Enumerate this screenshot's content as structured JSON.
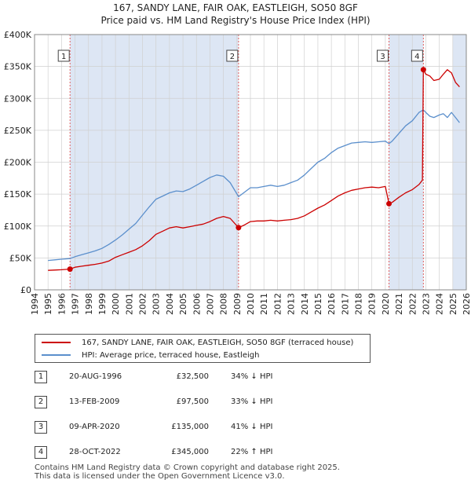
{
  "title": "167, SANDY LANE, FAIR OAK, EASTLEIGH, SO50 8GF",
  "subtitle": "Price paid vs. HM Land Registry's House Price Index (HPI)",
  "colors": {
    "price_line": "#cc0000",
    "hpi_line": "#5b8fcc",
    "shade": "#dde6f4",
    "vline": "#e06060",
    "grid": "#d0d0d0"
  },
  "chart_data": {
    "type": "line",
    "xlim": [
      1994,
      2026
    ],
    "ylim": [
      0,
      400000
    ],
    "x_ticks": [
      "1994",
      "1995",
      "1996",
      "1997",
      "1998",
      "1999",
      "2000",
      "2001",
      "2002",
      "2003",
      "2004",
      "2005",
      "2006",
      "2007",
      "2008",
      "2009",
      "2010",
      "2011",
      "2012",
      "2013",
      "2014",
      "2015",
      "2016",
      "2017",
      "2018",
      "2019",
      "2020",
      "2021",
      "2022",
      "2023",
      "2024",
      "2025",
      "2026"
    ],
    "y_ticks": [
      {
        "value": 0,
        "label": "£0"
      },
      {
        "value": 50000,
        "label": "£50K"
      },
      {
        "value": 100000,
        "label": "£100K"
      },
      {
        "value": 150000,
        "label": "£150K"
      },
      {
        "value": 200000,
        "label": "£200K"
      },
      {
        "value": 250000,
        "label": "£250K"
      },
      {
        "value": 300000,
        "label": "£300K"
      },
      {
        "value": 350000,
        "label": "£350K"
      },
      {
        "value": 400000,
        "label": "£400K"
      }
    ],
    "shaded_ranges": [
      [
        1996.63,
        2009.12
      ],
      [
        2020.27,
        2022.82
      ],
      [
        2025.0,
        2026.0
      ]
    ],
    "series": [
      {
        "name": "167, SANDY LANE, FAIR OAK, EASTLEIGH, SO50 8GF (terraced house)",
        "x": [
          1995.0,
          1995.5,
          1996.0,
          1996.63,
          1997.0,
          1997.5,
          1998.0,
          1998.5,
          1999.0,
          1999.5,
          2000.0,
          2000.5,
          2001.0,
          2001.5,
          2002.0,
          2002.5,
          2003.0,
          2003.5,
          2004.0,
          2004.5,
          2005.0,
          2005.5,
          2006.0,
          2006.5,
          2007.0,
          2007.5,
          2008.0,
          2008.5,
          2009.12,
          2009.5,
          2010.0,
          2010.5,
          2011.0,
          2011.5,
          2012.0,
          2012.5,
          2013.0,
          2013.5,
          2014.0,
          2014.5,
          2015.0,
          2015.5,
          2016.0,
          2016.5,
          2017.0,
          2017.5,
          2018.0,
          2018.5,
          2019.0,
          2019.5,
          2020.0,
          2020.27,
          2020.5,
          2021.0,
          2021.5,
          2022.0,
          2022.5,
          2022.75,
          2022.82,
          2023.0,
          2023.3,
          2023.6,
          2024.0,
          2024.3,
          2024.6,
          2024.9,
          2025.2,
          2025.5
        ],
        "values": [
          30500,
          31000,
          31500,
          32500,
          35500,
          37000,
          38500,
          40000,
          42000,
          45000,
          51000,
          55000,
          59000,
          63000,
          69000,
          77000,
          87000,
          92000,
          97000,
          99000,
          97000,
          99000,
          101000,
          103000,
          107000,
          112000,
          115000,
          112000,
          97500,
          101000,
          107000,
          108000,
          108000,
          109000,
          108000,
          109000,
          110000,
          112000,
          116000,
          122000,
          128000,
          133000,
          140000,
          147000,
          152000,
          156000,
          158000,
          160000,
          161000,
          160000,
          162000,
          135000,
          137000,
          145000,
          152000,
          157000,
          165000,
          172000,
          345000,
          338000,
          335000,
          328000,
          330000,
          338000,
          345000,
          340000,
          325000,
          318000
        ]
      },
      {
        "name": "HPI: Average price, terraced house, Eastleigh",
        "x": [
          1995.0,
          1995.5,
          1996.0,
          1996.63,
          1997.0,
          1997.5,
          1998.0,
          1998.5,
          1999.0,
          1999.5,
          2000.0,
          2000.5,
          2001.0,
          2001.5,
          2002.0,
          2002.5,
          2003.0,
          2003.5,
          2004.0,
          2004.5,
          2005.0,
          2005.5,
          2006.0,
          2006.5,
          2007.0,
          2007.5,
          2008.0,
          2008.5,
          2009.12,
          2009.5,
          2010.0,
          2010.5,
          2011.0,
          2011.5,
          2012.0,
          2012.5,
          2013.0,
          2013.5,
          2014.0,
          2014.5,
          2015.0,
          2015.5,
          2016.0,
          2016.5,
          2017.0,
          2017.5,
          2018.0,
          2018.5,
          2019.0,
          2019.5,
          2020.0,
          2020.27,
          2020.5,
          2021.0,
          2021.5,
          2022.0,
          2022.5,
          2022.82,
          2023.0,
          2023.3,
          2023.6,
          2024.0,
          2024.3,
          2024.6,
          2024.9,
          2025.2,
          2025.5
        ],
        "values": [
          46000,
          47000,
          48000,
          49000,
          52000,
          55000,
          58000,
          61000,
          65000,
          71000,
          78000,
          86000,
          95000,
          104000,
          117000,
          130000,
          142000,
          147000,
          152000,
          155000,
          154000,
          158000,
          164000,
          170000,
          176000,
          180000,
          178000,
          168000,
          146000,
          152000,
          160000,
          160000,
          162000,
          164000,
          162000,
          164000,
          168000,
          172000,
          180000,
          190000,
          200000,
          206000,
          215000,
          222000,
          226000,
          230000,
          231000,
          232000,
          231000,
          232000,
          233000,
          229000,
          233000,
          245000,
          257000,
          265000,
          278000,
          282000,
          278000,
          272000,
          270000,
          274000,
          276000,
          270000,
          278000,
          270000,
          262000
        ]
      }
    ],
    "sale_markers": [
      {
        "label": "1",
        "x": 1996.63,
        "value": 32500
      },
      {
        "label": "2",
        "x": 2009.12,
        "value": 97500
      },
      {
        "label": "3",
        "x": 2020.27,
        "value": 135000
      },
      {
        "label": "4",
        "x": 2022.82,
        "value": 345000
      }
    ]
  },
  "legend": {
    "price_label": "167, SANDY LANE, FAIR OAK, EASTLEIGH, SO50 8GF (terraced house)",
    "hpi_label": "HPI: Average price, terraced house, Eastleigh"
  },
  "sales": [
    {
      "num": "1",
      "date": "20-AUG-1996",
      "price": "£32,500",
      "hpi": "34% ↓ HPI"
    },
    {
      "num": "2",
      "date": "13-FEB-2009",
      "price": "£97,500",
      "hpi": "33% ↓ HPI"
    },
    {
      "num": "3",
      "date": "09-APR-2020",
      "price": "£135,000",
      "hpi": "41% ↓ HPI"
    },
    {
      "num": "4",
      "date": "28-OCT-2022",
      "price": "£345,000",
      "hpi": "22% ↑ HPI"
    }
  ],
  "footer": {
    "line1": "Contains HM Land Registry data © Crown copyright and database right 2025.",
    "line2": "This data is licensed under the Open Government Licence v3.0."
  }
}
